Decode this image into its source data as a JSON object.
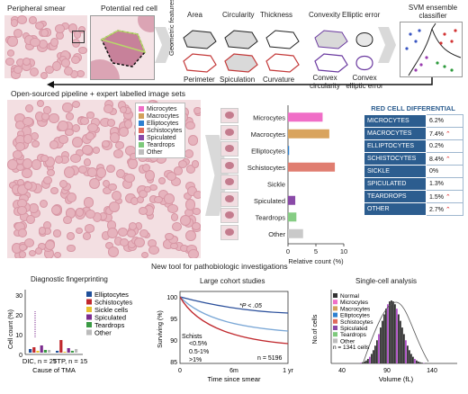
{
  "top": {
    "peripheral_smear": "Peripheral smear",
    "potential_red_cell": "Potential red cell",
    "geometric_features": "Geometric features",
    "feat_row1": [
      "Area",
      "Circularity",
      "Thickness",
      "Convexity",
      "Elliptic error"
    ],
    "feat_row2": [
      "Perimeter",
      "Spiculation",
      "Curvature",
      "Convex circularity",
      "Convex elliptic error"
    ],
    "svm": "SVM ensemble classifier"
  },
  "middle": {
    "pipeline": "Open-sourced pipeline + expert labelled image sets",
    "legend": [
      {
        "label": "Microcytes",
        "color": "#f06ec7"
      },
      {
        "label": "Macrocytes",
        "color": "#d3a05b"
      },
      {
        "label": "Elliptocytes",
        "color": "#2c7fd0"
      },
      {
        "label": "Schistocytes",
        "color": "#e06a5c"
      },
      {
        "label": "Spiculated",
        "color": "#8a4aa8"
      },
      {
        "label": "Teardrops",
        "color": "#7dc97b"
      },
      {
        "label": "Other",
        "color": "#bdbdbd"
      }
    ]
  },
  "bar_chart": {
    "type": "bar",
    "categories": [
      "Microcytes",
      "Macrocytes",
      "Elliptocytes",
      "Schistocytes",
      "Sickle",
      "Spiculated",
      "Teardrops",
      "Other"
    ],
    "values": [
      6.2,
      7.4,
      0.2,
      8.4,
      0,
      1.3,
      1.5,
      2.7
    ],
    "colors": [
      "#f06ec7",
      "#d9a45e",
      "#2c7fd0",
      "#e07d70",
      "#c9c9c9",
      "#8a4aa8",
      "#86cd84",
      "#c9c9c9"
    ],
    "xlabel": "Relative count (%)",
    "ticks": [
      "0",
      "5",
      "10"
    ],
    "xlim": [
      0,
      10
    ]
  },
  "differential": {
    "title": "RED CELL DIFFERENTIAL",
    "rows": [
      {
        "name": "MICROCYTES",
        "value": "6.2%",
        "flag": false
      },
      {
        "name": "MACROCYTES",
        "value": "7.4%",
        "flag": true
      },
      {
        "name": "ELLIPTOCYTES",
        "value": "0.2%",
        "flag": false
      },
      {
        "name": "SCHISTOCYTES",
        "value": "8.4%",
        "flag": true
      },
      {
        "name": "SICKLE",
        "value": "0%",
        "flag": false
      },
      {
        "name": "SPICULATED",
        "value": "1.3%",
        "flag": false
      },
      {
        "name": "TEARDROPS",
        "value": "1.5%",
        "flag": true
      },
      {
        "name": "OTHER",
        "value": "2.7%",
        "flag": true
      }
    ]
  },
  "bottom": {
    "new_tool": "New tool for pathobiologic investigations",
    "diag_title": "Diagnostic fingerprinting",
    "diag_ylabel": "Cell count (%)",
    "diag_xlabel": "Cause of TMA",
    "diag_yticks": [
      "0",
      "10",
      "20",
      "30"
    ],
    "diag_groups": [
      "DIC, n = 25",
      "TTP, n = 15"
    ],
    "diag_legend": [
      {
        "label": "Elliptocytes",
        "color": "#1f4f9a"
      },
      {
        "label": "Schistocytes",
        "color": "#c0282d"
      },
      {
        "label": "Sickle cells",
        "color": "#e8c12e"
      },
      {
        "label": "Spiculated",
        "color": "#7b2b8e"
      },
      {
        "label": "Teardrops",
        "color": "#3a9a44"
      },
      {
        "label": "Other",
        "color": "#bbbbbb"
      }
    ],
    "cohort_title": "Large cohort studies",
    "cohort_ylabel": "Surviving (%)",
    "cohort_xlabel": "Time since smear",
    "cohort_yticks": [
      "100",
      "95",
      "90",
      "85"
    ],
    "cohort_xticks": [
      "0",
      "6m",
      "1 yr"
    ],
    "cohort_p": "*P < .05",
    "cohort_schists": "Schists",
    "cohort_lines": [
      "<0.5%",
      "0.5-1%",
      ">1%"
    ],
    "cohort_n": "n = 5196",
    "single_title": "Single-cell analysis",
    "single_ylabel": "No.of cells",
    "single_xlabel": "Volume (fL)",
    "single_xticks": [
      "40",
      "90",
      "140"
    ],
    "single_legend": [
      {
        "label": "Normal",
        "color": "#333333"
      },
      {
        "label": "Microcytes",
        "color": "#f06ec7"
      },
      {
        "label": "Macrocytes",
        "color": "#d3a05b"
      },
      {
        "label": "Elliptocytes",
        "color": "#2c7fd0"
      },
      {
        "label": "Schistocytes",
        "color": "#e06a5c"
      },
      {
        "label": "Spiculated",
        "color": "#8a4aa8"
      },
      {
        "label": "Teardrops",
        "color": "#7dc97b"
      },
      {
        "label": "Other",
        "color": "#bdbdbd"
      }
    ],
    "single_n": "n = 1341 cells"
  }
}
